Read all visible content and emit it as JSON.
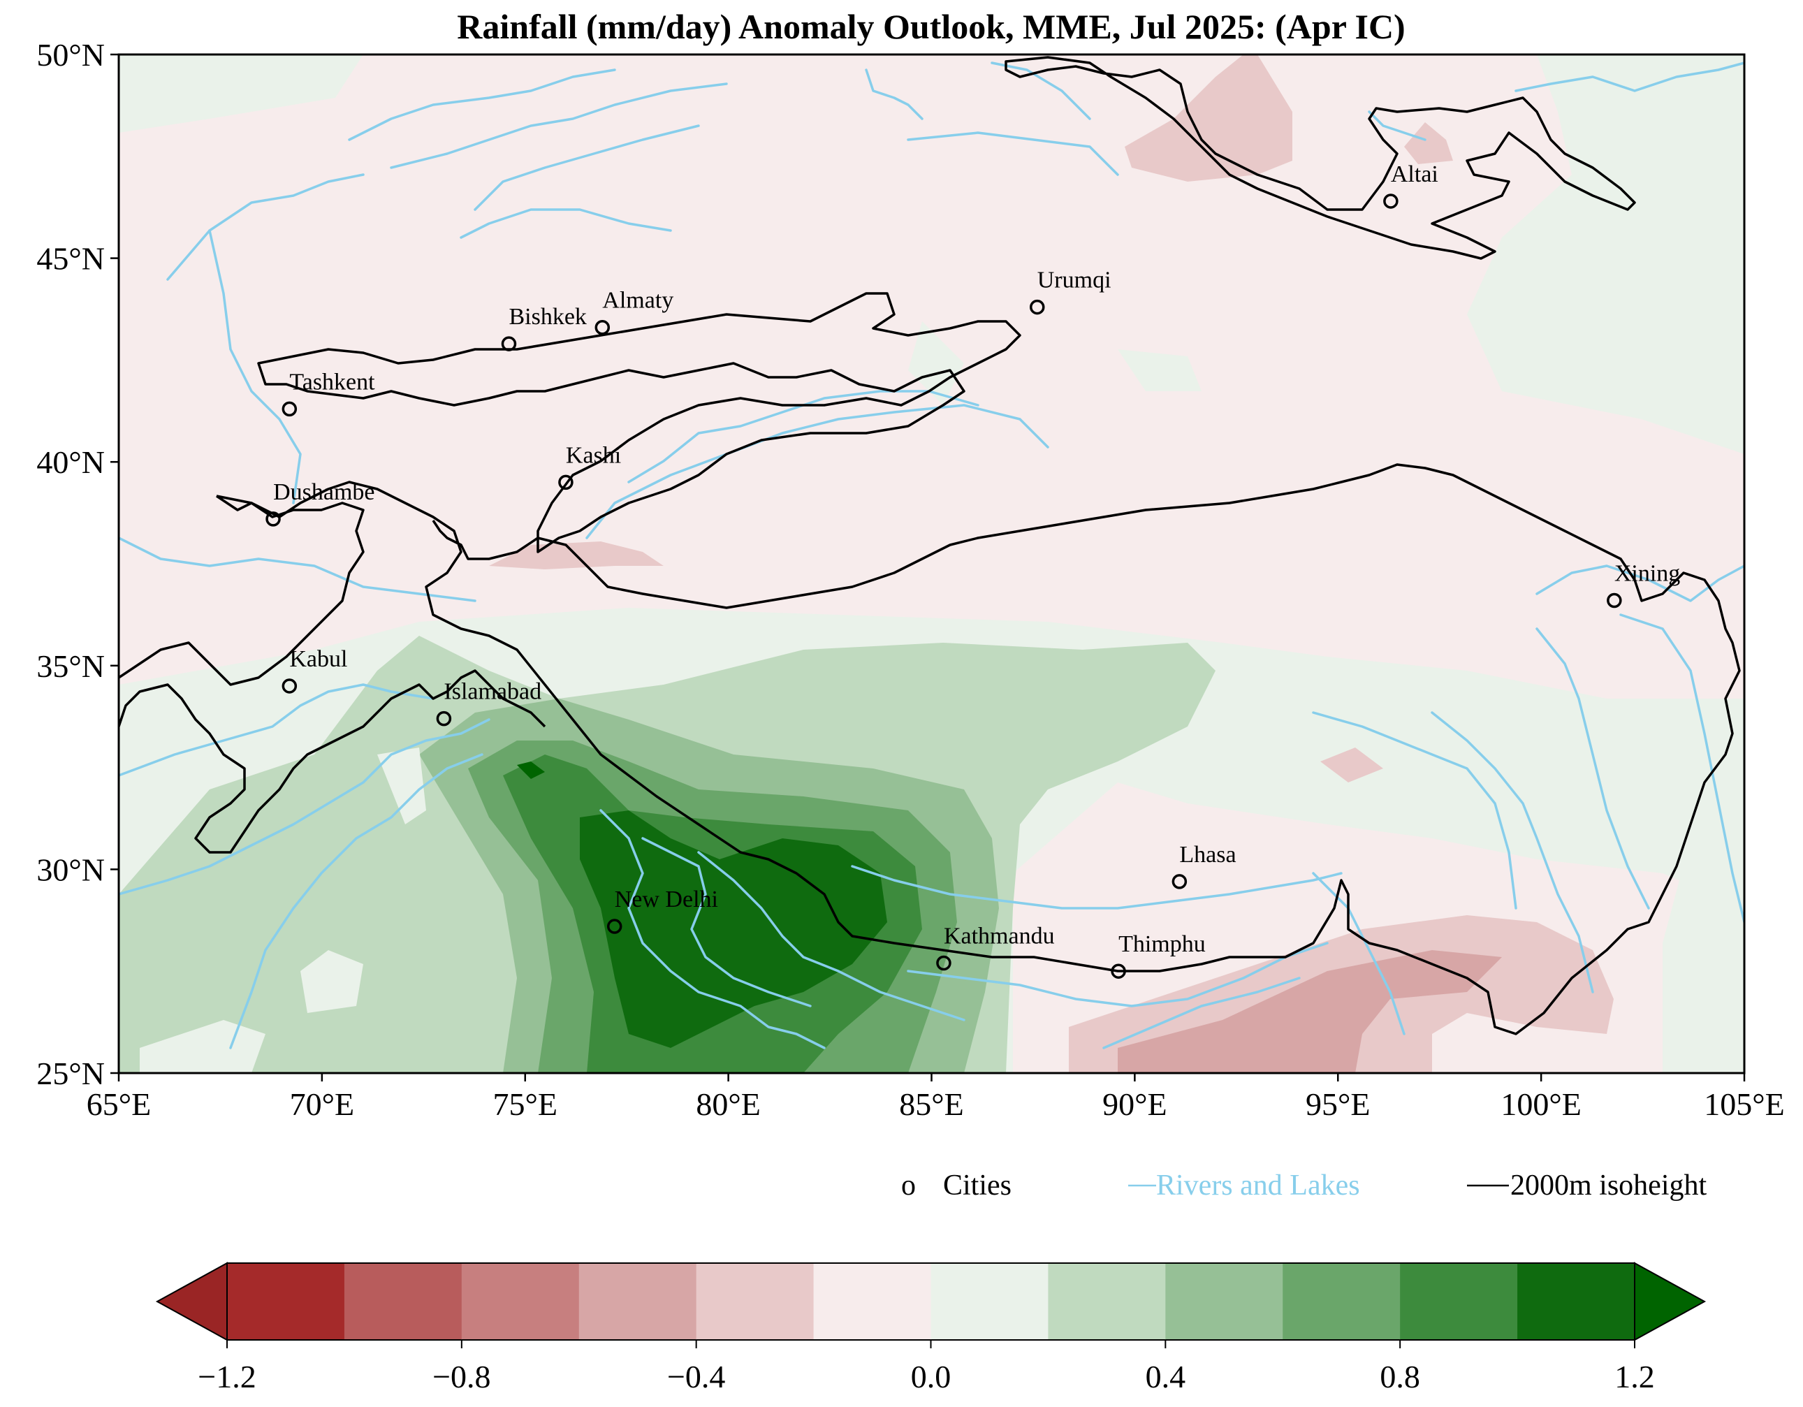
{
  "title": "Rainfall (mm/day) Anomaly Outlook, MME, Jul  2025:  (Apr IC)",
  "map": {
    "lon_range": [
      65,
      105
    ],
    "lat_range": [
      25,
      50
    ],
    "x_ticks": [
      "65°E",
      "70°E",
      "75°E",
      "80°E",
      "85°E",
      "90°E",
      "95°E",
      "100°E",
      "105°E"
    ],
    "y_ticks": [
      "50°N",
      "45°N",
      "40°N",
      "35°N",
      "30°N",
      "25°N"
    ],
    "cities": [
      {
        "name": "Altai",
        "lon": 96.3,
        "lat": 46.4
      },
      {
        "name": "Urumqi",
        "lon": 87.6,
        "lat": 43.8
      },
      {
        "name": "Almaty",
        "lon": 76.9,
        "lat": 43.3
      },
      {
        "name": "Bishkek",
        "lon": 74.6,
        "lat": 42.9
      },
      {
        "name": "Tashkent",
        "lon": 69.2,
        "lat": 41.3
      },
      {
        "name": "Kashi",
        "lon": 76.0,
        "lat": 39.5
      },
      {
        "name": "Dushambe",
        "lon": 68.8,
        "lat": 38.6
      },
      {
        "name": "Xining",
        "lon": 101.8,
        "lat": 36.6
      },
      {
        "name": "Kabul",
        "lon": 69.2,
        "lat": 34.5
      },
      {
        "name": "Islamabad",
        "lon": 73.0,
        "lat": 33.7
      },
      {
        "name": "Lhasa",
        "lon": 91.1,
        "lat": 29.7
      },
      {
        "name": "New Delhi",
        "lon": 77.2,
        "lat": 28.6
      },
      {
        "name": "Kathmandu",
        "lon": 85.3,
        "lat": 27.7
      },
      {
        "name": "Thimphu",
        "lon": 89.6,
        "lat": 27.5
      }
    ]
  },
  "legend": {
    "cities_marker": "o",
    "cities_label": "Cities",
    "rivers_label": "Rivers and Lakes",
    "isoheight_label": "2000m isoheight"
  },
  "colorbar": {
    "levels": [
      -1.2,
      -1.0,
      -0.8,
      -0.6,
      -0.4,
      -0.2,
      0.0,
      0.2,
      0.4,
      0.6,
      0.8,
      1.0,
      1.2
    ],
    "colors": [
      "#a52a2a",
      "#b85c5c",
      "#c77f7f",
      "#d7a6a6",
      "#e8c9c9",
      "#f7ecec",
      "#eaf2ea",
      "#c0dabf",
      "#96c096",
      "#6aa66a",
      "#3d8b3d",
      "#0f6b0f"
    ],
    "under_color": "#9a2525",
    "over_color": "#006400",
    "tick_labels": [
      "−1.2",
      "−0.8",
      "−0.4",
      "0.0",
      "0.4",
      "0.8",
      "1.2"
    ]
  },
  "colors": {
    "rivers": "#87ceeb",
    "isoheight": "#000000"
  }
}
